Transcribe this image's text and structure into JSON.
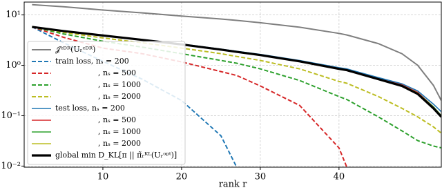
{
  "chart_data": {
    "type": "line",
    "xlabel": "rank r",
    "x": [
      1,
      5,
      10,
      15,
      20,
      25,
      27,
      30,
      35,
      40,
      41,
      45,
      48,
      50,
      52,
      53
    ],
    "xlim": [
      0,
      53
    ],
    "xticks": [
      10,
      20,
      30,
      40
    ],
    "ylim": [
      0.0095,
      18
    ],
    "yscale": "log",
    "yticks": [
      {
        "value": 10,
        "label": "10¹"
      },
      {
        "value": 1,
        "label": "10⁰"
      },
      {
        "value": 0.1,
        "label": "10⁻¹"
      },
      {
        "value": 0.01,
        "label": "10⁻²"
      }
    ],
    "grid": true,
    "legend": "lower left",
    "series": [
      {
        "name": "𝒥ᶜᴰᴿ(Uᵣᶜᴰᴿ)",
        "color": "#7f7f7f",
        "linestyle": "solid",
        "width": 2,
        "values": [
          16,
          14.5,
          12.5,
          11,
          9.5,
          8.3,
          7.8,
          7,
          5.7,
          4.3,
          4,
          2.7,
          1.7,
          1,
          0.4,
          0.2
        ]
      },
      {
        "name": "train loss, nₛ = 200",
        "color": "#1f77b4",
        "linestyle": "dashed",
        "width": 2,
        "values": [
          5.8,
          2.8,
          1.2,
          0.53,
          0.2,
          0.04,
          0.0095,
          null,
          null,
          null,
          null,
          null,
          null,
          null,
          null,
          null
        ]
      },
      {
        "name": ", nₛ = 500",
        "color": "#d62728",
        "linestyle": "dashed",
        "width": 2,
        "values": [
          5.8,
          3.6,
          2.2,
          1.7,
          1.17,
          0.75,
          0.63,
          0.39,
          0.16,
          0.023,
          0.0095,
          null,
          null,
          null,
          null,
          null
        ]
      },
      {
        "name": ", nₛ = 1000",
        "color": "#2ca02c",
        "linestyle": "dashed",
        "width": 2,
        "values": [
          5.8,
          4.2,
          3.0,
          2.3,
          1.7,
          1.25,
          1.1,
          0.85,
          0.5,
          0.24,
          0.21,
          0.095,
          0.05,
          0.032,
          0.025,
          0.023
        ]
      },
      {
        "name": ", nₛ = 2000",
        "color": "#bcbd22",
        "linestyle": "dashed",
        "width": 2,
        "values": [
          5.8,
          4.5,
          3.5,
          2.8,
          2.2,
          1.7,
          1.5,
          1.25,
          0.85,
          0.48,
          0.44,
          0.24,
          0.14,
          0.095,
          0.06,
          0.045
        ]
      },
      {
        "name": "test loss, nₛ = 200",
        "color": "#1f77b4",
        "linestyle": "solid",
        "width": 1.6,
        "values": [
          5.8,
          4.85,
          3.95,
          3.25,
          2.65,
          2.1,
          1.9,
          1.65,
          1.25,
          0.9,
          0.85,
          0.57,
          0.43,
          0.31,
          0.17,
          0.12
        ]
      },
      {
        "name": ", nₛ = 500",
        "color": "#d62728",
        "linestyle": "solid",
        "width": 1.6,
        "values": [
          5.8,
          4.8,
          3.9,
          3.2,
          2.6,
          2.05,
          1.86,
          1.6,
          1.2,
          0.86,
          0.81,
          0.54,
          0.41,
          0.29,
          0.15,
          0.1
        ]
      },
      {
        "name": ", nₛ = 1000",
        "color": "#2ca02c",
        "linestyle": "solid",
        "width": 1.6,
        "values": [
          5.8,
          4.8,
          3.9,
          3.2,
          2.6,
          2.05,
          1.85,
          1.6,
          1.2,
          0.86,
          0.8,
          0.54,
          0.4,
          0.28,
          0.15,
          0.1
        ]
      },
      {
        "name": ", nₛ = 2000",
        "color": "#bcbd22",
        "linestyle": "solid",
        "width": 1.6,
        "values": [
          5.8,
          4.8,
          3.9,
          3.2,
          2.6,
          2.05,
          1.85,
          1.6,
          1.2,
          0.85,
          0.8,
          0.53,
          0.4,
          0.28,
          0.145,
          0.098
        ]
      },
      {
        "name": "global min D_KL[π || π̃ᵣᴷᴸ(Uᵣᵒᵖᵗ)]",
        "color": "#000000",
        "linestyle": "solid",
        "width": 3.2,
        "values": [
          5.8,
          4.8,
          3.9,
          3.2,
          2.6,
          2.05,
          1.85,
          1.6,
          1.2,
          0.85,
          0.8,
          0.53,
          0.39,
          0.27,
          0.14,
          0.095
        ]
      }
    ]
  }
}
